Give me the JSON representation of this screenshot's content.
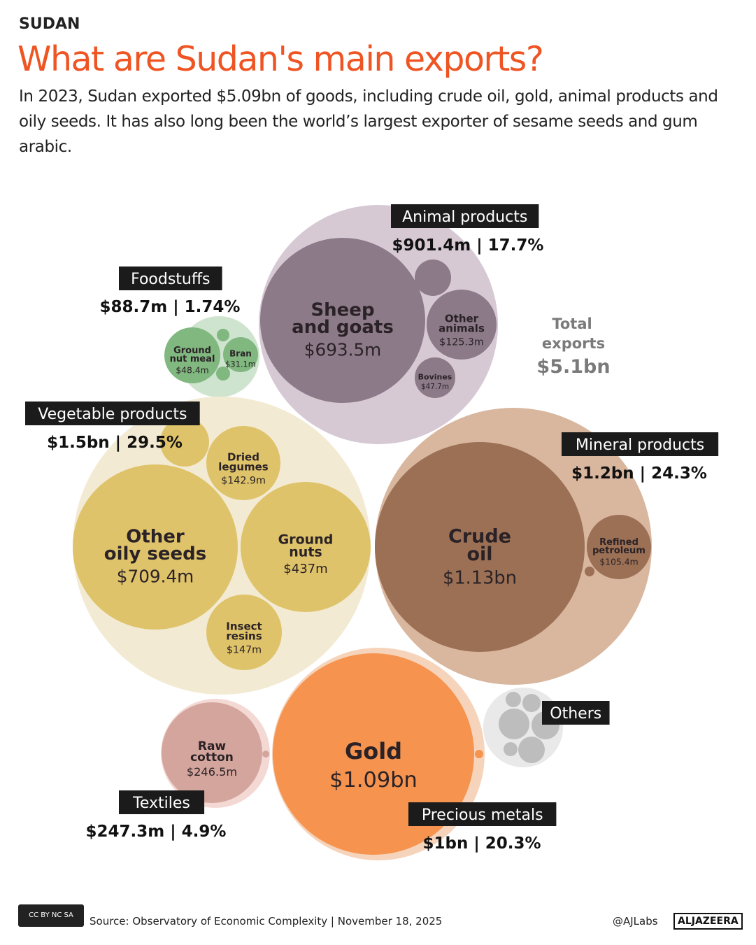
{
  "header": {
    "kicker": "SUDAN",
    "title": "What are Sudan's main exports?",
    "subtitle": "In 2023, Sudan exported $5.09bn of goods, including crude oil, gold, animal products and oily seeds. It has also long been the world’s largest exporter of sesame seeds and gum arabic."
  },
  "chart_data": {
    "type": "packed-bubble",
    "total": {
      "label": "Total exports",
      "value": "$5.1bn"
    },
    "groups": [
      {
        "id": "animal",
        "name": "Animal products",
        "value": "$901.4m | 17.7%",
        "value_usd_m": 901.4,
        "share_pct": 17.7,
        "color": "#d6c9d4",
        "child_color": "#8c7a89",
        "children": [
          {
            "name": "Sheep and goats",
            "value": "$693.5m",
            "value_usd_m": 693.5
          },
          {
            "name": "",
            "value": "",
            "value_usd_m": 35
          },
          {
            "name": "Other animals",
            "value": "$125.3m",
            "value_usd_m": 125.3
          },
          {
            "name": "Bovines",
            "value": "$47.7m",
            "value_usd_m": 47.7
          }
        ]
      },
      {
        "id": "food",
        "name": "Foodstuffs",
        "value": "$88.7m | 1.74%",
        "value_usd_m": 88.7,
        "share_pct": 1.74,
        "color": "#cfe4cf",
        "child_color": "#80b880",
        "children": [
          {
            "name": "Ground nut meal",
            "value": "$48.4m",
            "value_usd_m": 48.4
          },
          {
            "name": "Bran",
            "value": "$31.1m",
            "value_usd_m": 31.1
          },
          {
            "name": "",
            "value": "",
            "value_usd_m": 4
          },
          {
            "name": "",
            "value": "",
            "value_usd_m": 5
          }
        ]
      },
      {
        "id": "veg",
        "name": "Vegetable products",
        "value": "$1.5bn | 29.5%",
        "value_usd_m": 1500,
        "share_pct": 29.5,
        "color": "#f3ead3",
        "child_color": "#dfc36a",
        "children": [
          {
            "name": "Other oily seeds",
            "value": "$709.4m",
            "value_usd_m": 709.4
          },
          {
            "name": "Ground nuts",
            "value": "$437m",
            "value_usd_m": 437
          },
          {
            "name": "Dried legumes",
            "value": "$142.9m",
            "value_usd_m": 142.9
          },
          {
            "name": "Insect resins",
            "value": "$147m",
            "value_usd_m": 147
          },
          {
            "name": "",
            "value": "",
            "value_usd_m": 60
          }
        ]
      },
      {
        "id": "mineral",
        "name": "Mineral products",
        "value": "$1.2bn | 24.3%",
        "value_usd_m": 1200,
        "share_pct": 24.3,
        "color": "#d9b69e",
        "child_color": "#9b7055",
        "children": [
          {
            "name": "Crude oil",
            "value": "$1.13bn",
            "value_usd_m": 1130
          },
          {
            "name": "Refined petroleum",
            "value": "$105.4m",
            "value_usd_m": 105.4
          },
          {
            "name": "",
            "value": "",
            "value_usd_m": 3
          }
        ]
      },
      {
        "id": "gold",
        "name": "Precious metals",
        "value": "$1bn | 20.3%",
        "value_usd_m": 1000,
        "share_pct": 20.3,
        "color": "#f6d3bb",
        "child_color": "#f5934f",
        "children": [
          {
            "name": "Gold",
            "value": "$1.09bn",
            "value_usd_m": 1090
          },
          {
            "name": "",
            "value": "",
            "value_usd_m": 2
          }
        ]
      },
      {
        "id": "textiles",
        "name": "Textiles",
        "value": "$247.3m | 4.9%",
        "value_usd_m": 247.3,
        "share_pct": 4.9,
        "color": "#f3d8d4",
        "child_color": "#d4a59c",
        "children": [
          {
            "name": "Raw cotton",
            "value": "$246.5m",
            "value_usd_m": 246.5
          },
          {
            "name": "",
            "value": "",
            "value_usd_m": 1
          }
        ]
      },
      {
        "id": "others",
        "name": "Others",
        "value": "",
        "color": "#e9e9e9",
        "child_color": "#bdbdbd",
        "children": [
          {
            "name": "",
            "value": ""
          },
          {
            "name": "",
            "value": ""
          },
          {
            "name": "",
            "value": ""
          },
          {
            "name": "",
            "value": ""
          },
          {
            "name": "",
            "value": ""
          },
          {
            "name": "",
            "value": ""
          }
        ]
      }
    ]
  },
  "footer": {
    "license": "CC BY NC SA",
    "source": "Source:  Observatory of Economic Complexity | November 18, 2025",
    "handle": "@AJLabs",
    "brand": "ALJAZEERA"
  }
}
